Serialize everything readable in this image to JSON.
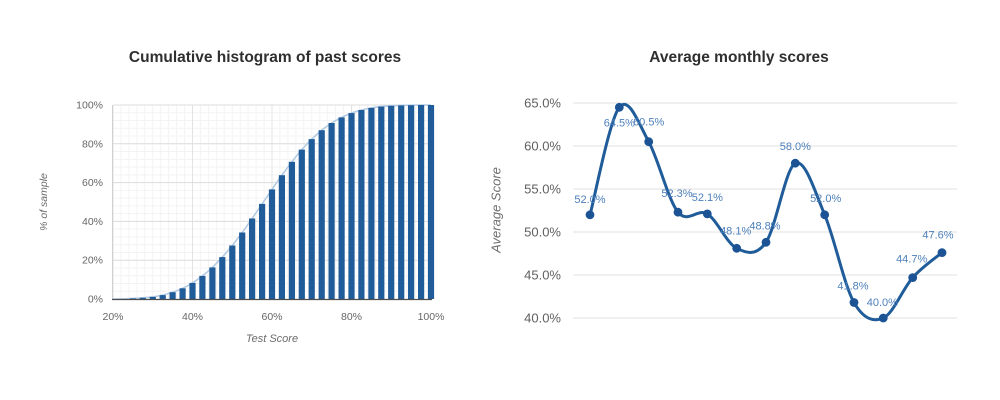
{
  "page": {
    "background": "#ffffff"
  },
  "colors": {
    "bar": "#1f5c99",
    "line": "#1f5c99",
    "marker": "#1b5394",
    "point_label": "#4c7fba",
    "envelope": "#b4cbe4",
    "grid_major": "#dcdcdc",
    "grid_minor": "#f3f3f3",
    "grid_light": "#e3e3e3",
    "axis_text_left": "#666666",
    "axis_text_right": "#5f5f5f",
    "axis_line": "#4d4d4d",
    "title_text": "#2f2f2f"
  },
  "chart_data": [
    {
      "type": "bar",
      "title": "Cumulative histogram of past scores",
      "xlabel": "Test Score",
      "ylabel": "% of sample",
      "xlim": [
        20,
        100
      ],
      "ylim": [
        0,
        100
      ],
      "grid": "major and fine minor mesh, light gray",
      "legend": "none",
      "x": [
        20,
        22.5,
        25,
        27.5,
        30,
        32.5,
        35,
        37.5,
        40,
        42.5,
        45,
        47.5,
        50,
        52.5,
        55,
        57.5,
        60,
        62.5,
        65,
        67.5,
        70,
        72.5,
        75,
        77.5,
        80,
        82.5,
        85,
        87.5,
        90,
        92.5,
        95,
        97.5,
        100
      ],
      "values": [
        0,
        0.1,
        0.3,
        0.6,
        1.1,
        2,
        3.5,
        5.5,
        8.3,
        11.9,
        16.3,
        21.6,
        27.6,
        34.3,
        41.5,
        49,
        56.5,
        63.8,
        70.7,
        77,
        82.4,
        87,
        90.7,
        93.6,
        95.8,
        97.4,
        98.5,
        99.2,
        99.6,
        99.8,
        99.9,
        100,
        100
      ],
      "envelope": "smooth light-blue cumulative curve traced along bar tops",
      "x_ticks": [
        20,
        40,
        60,
        80,
        100
      ],
      "x_tick_labels": [
        "20%",
        "40%",
        "60%",
        "80%",
        "100%"
      ],
      "y_ticks": [
        0,
        20,
        40,
        60,
        80,
        100
      ],
      "y_tick_labels": [
        "0%",
        "20%",
        "40%",
        "60%",
        "80%",
        "100%"
      ]
    },
    {
      "type": "line",
      "title": "Average monthly scores",
      "xlabel": "",
      "ylabel": "Average Score",
      "ylim": [
        40,
        65
      ],
      "grid": "horizontal gridlines only",
      "legend": "none",
      "smooth": true,
      "x": [
        1,
        2,
        3,
        4,
        5,
        6,
        7,
        8,
        9,
        10,
        11,
        12,
        13
      ],
      "values": [
        52.0,
        64.5,
        60.5,
        52.3,
        52.1,
        48.1,
        48.8,
        58.0,
        52.0,
        41.8,
        40.0,
        44.7,
        47.6
      ],
      "labels": [
        "52.0%",
        "64.5%",
        "60.5%",
        "52.3%",
        "52.1%",
        "48.1%",
        "48.8%",
        "58.0%",
        "52.0%",
        "41.8%",
        "40.0%",
        "44.7%",
        "47.6%"
      ],
      "x_tick_labels": [],
      "y_ticks": [
        40,
        45,
        50,
        55,
        60,
        65
      ],
      "y_tick_labels": [
        "40.0%",
        "45.0%",
        "50.0%",
        "55.0%",
        "60.0%",
        "65.0%"
      ]
    }
  ]
}
